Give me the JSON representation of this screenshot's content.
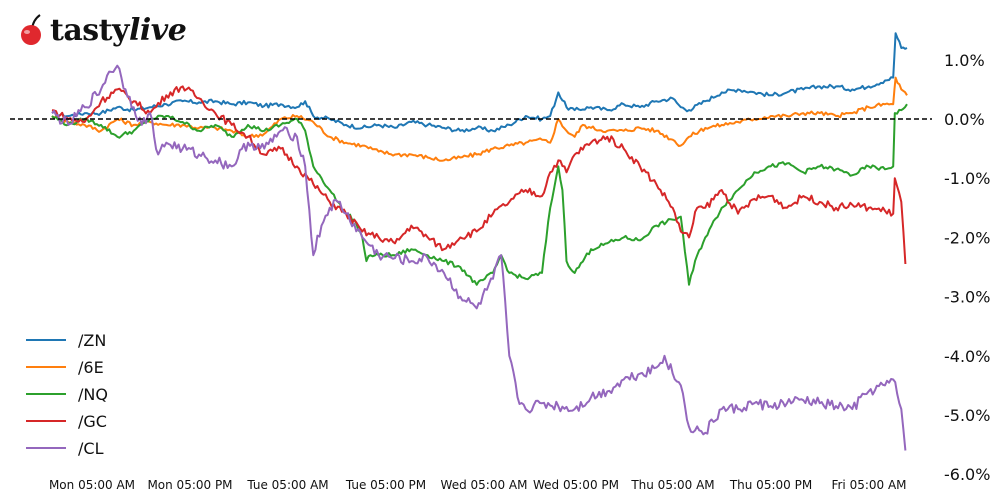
{
  "brand": {
    "name_bold": "tasty",
    "name_italic": "live",
    "logo_icon": "cherry-icon",
    "logo_color": "#e0282e"
  },
  "chart_data": {
    "type": "line",
    "title": "",
    "xlabel": "",
    "ylabel": "",
    "ylim": [
      -6.0,
      1.4
    ],
    "y_ticks": [
      "1.0%",
      "0.0%",
      "-1.0%",
      "-2.0%",
      "-3.0%",
      "-4.0%",
      "-5.0%",
      "-6.0%"
    ],
    "y_tick_values": [
      1.0,
      0.0,
      -1.0,
      -2.0,
      -3.0,
      -4.0,
      -5.0,
      -6.0
    ],
    "x_ticks": [
      "Mon 05:00 AM",
      "Mon 05:00 PM",
      "Tue 05:00 AM",
      "Tue 05:00 PM",
      "Wed 05:00 AM",
      "Wed 05:00 PM",
      "Thu 05:00 AM",
      "Thu 05:00 PM",
      "Fri 05:00 AM"
    ],
    "x_unit": "hours since Mon 00:00",
    "x_tick_hours": [
      5,
      17,
      29,
      41,
      53,
      65,
      77,
      89,
      101
    ],
    "reference_line": {
      "y": 0.0,
      "style": "dashed",
      "color": "#000000"
    },
    "grid": false,
    "legend_position": "lower left",
    "series": [
      {
        "name": "/ZN",
        "color": "#1f77b4",
        "points": [
          [
            0,
            0.1
          ],
          [
            2,
            0.05
          ],
          [
            4,
            0.1
          ],
          [
            6,
            0.1
          ],
          [
            8,
            0.2
          ],
          [
            10,
            0.15
          ],
          [
            12,
            0.2
          ],
          [
            14,
            0.25
          ],
          [
            16,
            0.3
          ],
          [
            18,
            0.28
          ],
          [
            20,
            0.3
          ],
          [
            22,
            0.25
          ],
          [
            24,
            0.28
          ],
          [
            26,
            0.22
          ],
          [
            28,
            0.25
          ],
          [
            30,
            0.2
          ],
          [
            31,
            0.3
          ],
          [
            32,
            0.05
          ],
          [
            34,
            0.0
          ],
          [
            36,
            -0.1
          ],
          [
            38,
            -0.15
          ],
          [
            40,
            -0.1
          ],
          [
            42,
            -0.15
          ],
          [
            44,
            -0.05
          ],
          [
            46,
            -0.1
          ],
          [
            48,
            -0.15
          ],
          [
            50,
            -0.2
          ],
          [
            52,
            -0.15
          ],
          [
            54,
            -0.2
          ],
          [
            56,
            -0.1
          ],
          [
            58,
            0.05
          ],
          [
            60,
            0.0
          ],
          [
            61,
            0.05
          ],
          [
            62,
            0.45
          ],
          [
            63,
            0.2
          ],
          [
            64,
            0.15
          ],
          [
            66,
            0.2
          ],
          [
            68,
            0.15
          ],
          [
            70,
            0.25
          ],
          [
            72,
            0.2
          ],
          [
            74,
            0.3
          ],
          [
            76,
            0.35
          ],
          [
            77,
            0.2
          ],
          [
            78,
            0.15
          ],
          [
            80,
            0.3
          ],
          [
            82,
            0.45
          ],
          [
            84,
            0.5
          ],
          [
            86,
            0.45
          ],
          [
            88,
            0.4
          ],
          [
            90,
            0.45
          ],
          [
            92,
            0.5
          ],
          [
            94,
            0.55
          ],
          [
            96,
            0.55
          ],
          [
            98,
            0.5
          ],
          [
            100,
            0.55
          ],
          [
            102,
            0.65
          ],
          [
            103,
            0.7
          ],
          [
            103.3,
            1.45
          ],
          [
            104,
            1.2
          ],
          [
            104.7,
            1.2
          ]
        ]
      },
      {
        "name": "/6E",
        "color": "#ff7f0e",
        "points": [
          [
            0,
            0.05
          ],
          [
            2,
            -0.05
          ],
          [
            4,
            -0.1
          ],
          [
            6,
            -0.2
          ],
          [
            8,
            0.0
          ],
          [
            10,
            -0.1
          ],
          [
            12,
            -0.05
          ],
          [
            14,
            -0.1
          ],
          [
            16,
            -0.1
          ],
          [
            18,
            -0.15
          ],
          [
            20,
            -0.15
          ],
          [
            22,
            -0.2
          ],
          [
            24,
            -0.3
          ],
          [
            26,
            -0.25
          ],
          [
            28,
            0.0
          ],
          [
            30,
            0.05
          ],
          [
            32,
            -0.05
          ],
          [
            34,
            -0.3
          ],
          [
            36,
            -0.4
          ],
          [
            38,
            -0.45
          ],
          [
            40,
            -0.55
          ],
          [
            42,
            -0.6
          ],
          [
            44,
            -0.6
          ],
          [
            46,
            -0.65
          ],
          [
            48,
            -0.7
          ],
          [
            50,
            -0.65
          ],
          [
            52,
            -0.6
          ],
          [
            54,
            -0.5
          ],
          [
            56,
            -0.45
          ],
          [
            58,
            -0.4
          ],
          [
            60,
            -0.35
          ],
          [
            61,
            -0.4
          ],
          [
            62,
            0.0
          ],
          [
            63,
            -0.2
          ],
          [
            64,
            -0.3
          ],
          [
            65,
            -0.1
          ],
          [
            66,
            -0.15
          ],
          [
            68,
            -0.2
          ],
          [
            70,
            -0.2
          ],
          [
            72,
            -0.15
          ],
          [
            74,
            -0.2
          ],
          [
            76,
            -0.35
          ],
          [
            77,
            -0.45
          ],
          [
            78,
            -0.3
          ],
          [
            80,
            -0.15
          ],
          [
            82,
            -0.1
          ],
          [
            84,
            -0.05
          ],
          [
            86,
            0.0
          ],
          [
            88,
            0.05
          ],
          [
            90,
            0.05
          ],
          [
            92,
            0.1
          ],
          [
            94,
            0.1
          ],
          [
            96,
            0.05
          ],
          [
            98,
            0.1
          ],
          [
            100,
            0.2
          ],
          [
            102,
            0.25
          ],
          [
            103,
            0.25
          ],
          [
            103.3,
            0.7
          ],
          [
            104,
            0.5
          ],
          [
            104.7,
            0.4
          ]
        ]
      },
      {
        "name": "/NQ",
        "color": "#2ca02c",
        "points": [
          [
            0,
            0.05
          ],
          [
            2,
            -0.1
          ],
          [
            4,
            0.0
          ],
          [
            6,
            -0.1
          ],
          [
            8,
            -0.3
          ],
          [
            10,
            -0.2
          ],
          [
            12,
            0.0
          ],
          [
            14,
            0.05
          ],
          [
            16,
            -0.05
          ],
          [
            18,
            -0.2
          ],
          [
            20,
            -0.1
          ],
          [
            22,
            -0.3
          ],
          [
            24,
            -0.1
          ],
          [
            26,
            -0.2
          ],
          [
            28,
            -0.1
          ],
          [
            30,
            0.0
          ],
          [
            31,
            -0.2
          ],
          [
            32,
            -0.8
          ],
          [
            33,
            -1.0
          ],
          [
            34,
            -1.2
          ],
          [
            35,
            -1.4
          ],
          [
            36,
            -1.6
          ],
          [
            37,
            -1.7
          ],
          [
            38,
            -2.0
          ],
          [
            38.5,
            -2.4
          ],
          [
            39,
            -2.3
          ],
          [
            40,
            -2.3
          ],
          [
            42,
            -2.3
          ],
          [
            44,
            -2.2
          ],
          [
            46,
            -2.3
          ],
          [
            48,
            -2.4
          ],
          [
            50,
            -2.5
          ],
          [
            52,
            -2.8
          ],
          [
            54,
            -2.6
          ],
          [
            55,
            -2.3
          ],
          [
            56,
            -2.6
          ],
          [
            58,
            -2.7
          ],
          [
            60,
            -2.6
          ],
          [
            61,
            -1.5
          ],
          [
            62,
            -0.8
          ],
          [
            62.5,
            -1.2
          ],
          [
            63,
            -2.4
          ],
          [
            64,
            -2.6
          ],
          [
            66,
            -2.2
          ],
          [
            68,
            -2.1
          ],
          [
            70,
            -2.0
          ],
          [
            72,
            -2.05
          ],
          [
            74,
            -1.8
          ],
          [
            76,
            -1.7
          ],
          [
            77,
            -1.65
          ],
          [
            78,
            -2.8
          ],
          [
            79,
            -2.3
          ],
          [
            80,
            -2.0
          ],
          [
            82,
            -1.5
          ],
          [
            84,
            -1.2
          ],
          [
            86,
            -0.9
          ],
          [
            88,
            -0.8
          ],
          [
            90,
            -0.75
          ],
          [
            92,
            -0.9
          ],
          [
            94,
            -0.8
          ],
          [
            96,
            -0.85
          ],
          [
            98,
            -0.95
          ],
          [
            100,
            -0.8
          ],
          [
            102,
            -0.85
          ],
          [
            103,
            -0.8
          ],
          [
            103.2,
            0.1
          ],
          [
            104,
            0.15
          ],
          [
            104.7,
            0.25
          ]
        ]
      },
      {
        "name": "/GC",
        "color": "#d62728",
        "points": [
          [
            0,
            0.15
          ],
          [
            2,
            0.0
          ],
          [
            4,
            -0.05
          ],
          [
            6,
            0.3
          ],
          [
            8,
            0.5
          ],
          [
            10,
            0.3
          ],
          [
            12,
            0.1
          ],
          [
            14,
            0.4
          ],
          [
            16,
            0.55
          ],
          [
            18,
            0.35
          ],
          [
            20,
            0.1
          ],
          [
            22,
            -0.1
          ],
          [
            24,
            -0.3
          ],
          [
            26,
            -0.6
          ],
          [
            28,
            -0.5
          ],
          [
            30,
            -0.8
          ],
          [
            32,
            -1.1
          ],
          [
            34,
            -1.4
          ],
          [
            36,
            -1.6
          ],
          [
            38,
            -1.9
          ],
          [
            40,
            -2.0
          ],
          [
            42,
            -2.1
          ],
          [
            44,
            -1.8
          ],
          [
            46,
            -2.0
          ],
          [
            48,
            -2.2
          ],
          [
            50,
            -2.0
          ],
          [
            52,
            -1.9
          ],
          [
            54,
            -1.6
          ],
          [
            56,
            -1.4
          ],
          [
            58,
            -1.2
          ],
          [
            60,
            -1.3
          ],
          [
            61,
            -0.9
          ],
          [
            62,
            -0.7
          ],
          [
            63,
            -0.9
          ],
          [
            64,
            -0.6
          ],
          [
            66,
            -0.4
          ],
          [
            68,
            -0.3
          ],
          [
            70,
            -0.5
          ],
          [
            72,
            -0.8
          ],
          [
            74,
            -1.1
          ],
          [
            76,
            -1.5
          ],
          [
            77,
            -1.9
          ],
          [
            78,
            -2.0
          ],
          [
            79,
            -1.5
          ],
          [
            80,
            -1.5
          ],
          [
            82,
            -1.2
          ],
          [
            84,
            -1.6
          ],
          [
            86,
            -1.35
          ],
          [
            88,
            -1.3
          ],
          [
            90,
            -1.5
          ],
          [
            92,
            -1.3
          ],
          [
            94,
            -1.4
          ],
          [
            96,
            -1.5
          ],
          [
            98,
            -1.45
          ],
          [
            100,
            -1.5
          ],
          [
            102,
            -1.55
          ],
          [
            103,
            -1.6
          ],
          [
            103.2,
            -1.0
          ],
          [
            104,
            -1.4
          ],
          [
            104.5,
            -2.45
          ]
        ]
      },
      {
        "name": "/CL",
        "color": "#9467bd",
        "points": [
          [
            0,
            0.1
          ],
          [
            2,
            -0.1
          ],
          [
            4,
            0.2
          ],
          [
            6,
            0.5
          ],
          [
            7,
            0.8
          ],
          [
            8,
            0.9
          ],
          [
            9,
            0.5
          ],
          [
            10,
            0.2
          ],
          [
            11,
            -0.1
          ],
          [
            12,
            0.1
          ],
          [
            13,
            -0.6
          ],
          [
            14,
            -0.4
          ],
          [
            16,
            -0.5
          ],
          [
            18,
            -0.6
          ],
          [
            20,
            -0.7
          ],
          [
            22,
            -0.8
          ],
          [
            24,
            -0.4
          ],
          [
            26,
            -0.5
          ],
          [
            28,
            -0.2
          ],
          [
            30,
            -0.3
          ],
          [
            31,
            -0.8
          ],
          [
            32,
            -2.3
          ],
          [
            33,
            -1.8
          ],
          [
            34,
            -1.5
          ],
          [
            35,
            -1.4
          ],
          [
            36,
            -1.6
          ],
          [
            38,
            -2.0
          ],
          [
            40,
            -2.3
          ],
          [
            42,
            -2.35
          ],
          [
            44,
            -2.4
          ],
          [
            46,
            -2.35
          ],
          [
            48,
            -2.6
          ],
          [
            50,
            -3.0
          ],
          [
            52,
            -3.2
          ],
          [
            54,
            -2.7
          ],
          [
            55,
            -2.3
          ],
          [
            56,
            -4.0
          ],
          [
            57,
            -4.7
          ],
          [
            58,
            -4.9
          ],
          [
            60,
            -4.8
          ],
          [
            62,
            -4.85
          ],
          [
            64,
            -4.9
          ],
          [
            66,
            -4.7
          ],
          [
            68,
            -4.6
          ],
          [
            70,
            -4.4
          ],
          [
            72,
            -4.3
          ],
          [
            74,
            -4.2
          ],
          [
            75,
            -4.0
          ],
          [
            76,
            -4.3
          ],
          [
            77,
            -4.5
          ],
          [
            78,
            -5.2
          ],
          [
            80,
            -5.3
          ],
          [
            82,
            -4.9
          ],
          [
            84,
            -4.9
          ],
          [
            86,
            -4.8
          ],
          [
            88,
            -4.85
          ],
          [
            90,
            -4.8
          ],
          [
            92,
            -4.75
          ],
          [
            94,
            -4.8
          ],
          [
            96,
            -4.85
          ],
          [
            98,
            -4.9
          ],
          [
            100,
            -4.6
          ],
          [
            102,
            -4.5
          ],
          [
            103,
            -4.4
          ],
          [
            104,
            -4.9
          ],
          [
            104.5,
            -5.6
          ]
        ]
      }
    ]
  }
}
